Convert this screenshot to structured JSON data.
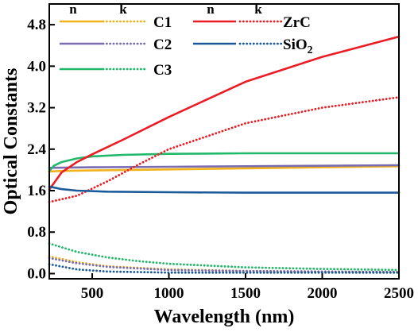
{
  "chart_data": {
    "type": "line",
    "xlabel": "Wavelength (nm)",
    "ylabel": "Optical Constants",
    "xlim": [
      220,
      2500
    ],
    "ylim": [
      -0.1,
      5.2
    ],
    "xticks": [
      500,
      1000,
      1500,
      2000,
      2500
    ],
    "xtick_labels": [
      "500",
      "1000",
      "1500",
      "2000",
      "2500"
    ],
    "yticks": [
      0.0,
      0.8,
      1.6,
      2.4,
      3.2,
      4.0,
      4.8
    ],
    "ytick_labels": [
      "0.0",
      "0.8",
      "1.6",
      "2.4",
      "3.2",
      "4.0",
      "4.8"
    ],
    "legend": {
      "placement": "top-left",
      "header_n": "n",
      "header_k": "k",
      "header_n2": "n",
      "header_k2": "k",
      "entries": [
        {
          "label": "C1",
          "color": "#f2b21a"
        },
        {
          "label": "ZrC",
          "color": "#ec1c24"
        },
        {
          "label": "C2",
          "color": "#7a6cb0"
        },
        {
          "label": "SiO",
          "label_sub": "2",
          "color": "#1b5a9a"
        },
        {
          "label": "C3",
          "color": "#21b86a"
        }
      ]
    },
    "series": [
      {
        "name": "C1",
        "kind": "n",
        "color": "#f2b21a",
        "dash": false,
        "x": [
          220,
          300,
          500,
          1000,
          1500,
          2000,
          2500
        ],
        "y": [
          1.97,
          1.98,
          1.99,
          2.01,
          2.03,
          2.05,
          2.07
        ]
      },
      {
        "name": "C1",
        "kind": "k",
        "color": "#f2b21a",
        "dash": true,
        "x": [
          220,
          400,
          600,
          1000,
          1500,
          2000,
          2500
        ],
        "y": [
          0.33,
          0.22,
          0.14,
          0.08,
          0.05,
          0.04,
          0.03
        ]
      },
      {
        "name": "C2",
        "kind": "n",
        "color": "#7a6cb0",
        "dash": false,
        "x": [
          220,
          500,
          1000,
          1500,
          2000,
          2500
        ],
        "y": [
          2.04,
          2.05,
          2.06,
          2.07,
          2.08,
          2.09
        ]
      },
      {
        "name": "C2",
        "kind": "k",
        "color": "#7a6cb0",
        "dash": true,
        "x": [
          220,
          400,
          600,
          1000,
          1500,
          2000,
          2500
        ],
        "y": [
          0.3,
          0.2,
          0.13,
          0.07,
          0.05,
          0.04,
          0.03
        ]
      },
      {
        "name": "C3",
        "kind": "n",
        "color": "#21b86a",
        "dash": false,
        "x": [
          220,
          250,
          300,
          400,
          500,
          700,
          1000,
          1500,
          2000,
          2500
        ],
        "y": [
          1.98,
          2.08,
          2.15,
          2.22,
          2.26,
          2.29,
          2.31,
          2.32,
          2.32,
          2.32
        ]
      },
      {
        "name": "C3",
        "kind": "k",
        "color": "#21b86a",
        "dash": true,
        "x": [
          220,
          400,
          600,
          800,
          1000,
          1500,
          2000,
          2500
        ],
        "y": [
          0.58,
          0.42,
          0.31,
          0.24,
          0.19,
          0.12,
          0.09,
          0.07
        ]
      },
      {
        "name": "ZrC",
        "kind": "n",
        "color": "#ec1c24",
        "dash": false,
        "x": [
          220,
          300,
          400,
          500,
          700,
          1000,
          1500,
          2000,
          2500
        ],
        "y": [
          1.62,
          1.95,
          2.15,
          2.3,
          2.58,
          3.02,
          3.7,
          4.18,
          4.57
        ]
      },
      {
        "name": "ZrC",
        "kind": "k",
        "color": "#ec1c24",
        "dash": true,
        "x": [
          220,
          400,
          600,
          800,
          1000,
          1500,
          2000,
          2500
        ],
        "y": [
          1.38,
          1.5,
          1.78,
          2.1,
          2.4,
          2.9,
          3.2,
          3.4
        ]
      },
      {
        "name": "SiO2",
        "kind": "n",
        "color": "#1b5a9a",
        "dash": false,
        "x": [
          220,
          300,
          400,
          600,
          1000,
          1500,
          2000,
          2500
        ],
        "y": [
          1.68,
          1.63,
          1.6,
          1.58,
          1.57,
          1.56,
          1.56,
          1.56
        ]
      },
      {
        "name": "SiO2",
        "kind": "k",
        "color": "#1b5a9a",
        "dash": true,
        "x": [
          220,
          400,
          600,
          1000,
          1500,
          2000,
          2500
        ],
        "y": [
          0.18,
          0.08,
          0.04,
          0.02,
          0.02,
          0.02,
          0.02
        ]
      }
    ]
  }
}
